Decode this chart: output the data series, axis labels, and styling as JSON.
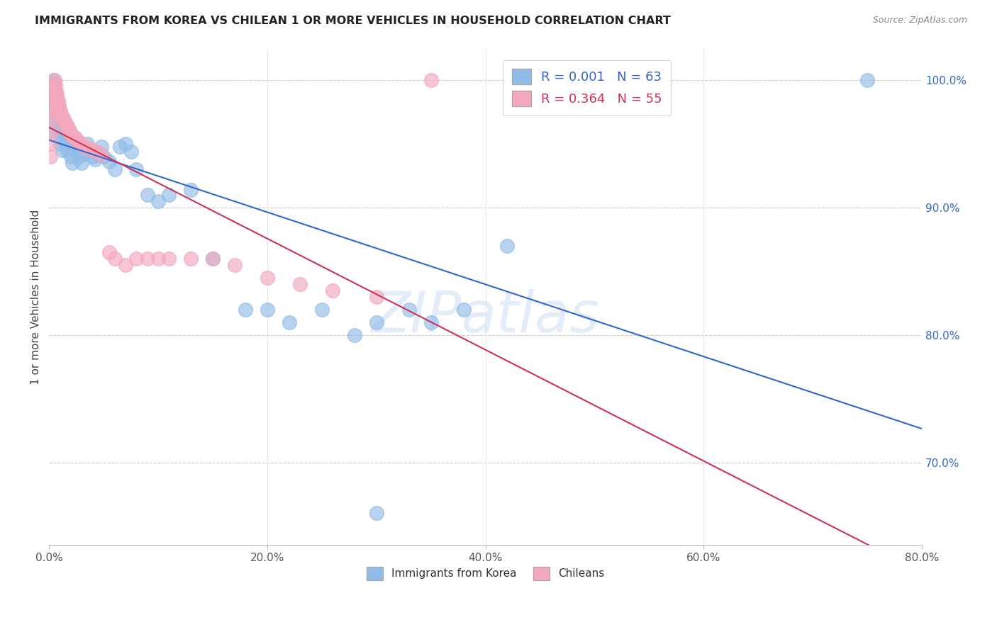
{
  "title": "IMMIGRANTS FROM KOREA VS CHILEAN 1 OR MORE VEHICLES IN HOUSEHOLD CORRELATION CHART",
  "source": "Source: ZipAtlas.com",
  "ylabel": "1 or more Vehicles in Household",
  "ylabel_right_labels": [
    "100.0%",
    "90.0%",
    "80.0%",
    "70.0%"
  ],
  "ylabel_right_values": [
    1.0,
    0.9,
    0.8,
    0.7
  ],
  "xtick_labels": [
    "0.0%",
    "20.0%",
    "40.0%",
    "60.0%",
    "80.0%"
  ],
  "xtick_values": [
    0.0,
    0.2,
    0.4,
    0.6,
    0.8
  ],
  "legend_korea": "R = 0.001   N = 63",
  "legend_chilean": "R = 0.364   N = 55",
  "legend_bottom_korea": "Immigrants from Korea",
  "legend_bottom_chilean": "Chileans",
  "blue_color": "#92bce8",
  "pink_color": "#f4a8bc",
  "blue_line_color": "#3366cc",
  "pink_line_color": "#cc3355",
  "xmin": 0.0,
  "xmax": 0.8,
  "ymin": 0.635,
  "ymax": 1.025,
  "korea_x": [
    0.001,
    0.001,
    0.002,
    0.002,
    0.003,
    0.003,
    0.004,
    0.004,
    0.005,
    0.005,
    0.006,
    0.006,
    0.007,
    0.007,
    0.008,
    0.008,
    0.009,
    0.01,
    0.01,
    0.012,
    0.012,
    0.013,
    0.015,
    0.015,
    0.017,
    0.018,
    0.02,
    0.021,
    0.023,
    0.025,
    0.027,
    0.03,
    0.032,
    0.035,
    0.038,
    0.04,
    0.042,
    0.045,
    0.048,
    0.05,
    0.055,
    0.06,
    0.065,
    0.07,
    0.075,
    0.08,
    0.09,
    0.1,
    0.11,
    0.13,
    0.15,
    0.18,
    0.2,
    0.22,
    0.25,
    0.28,
    0.3,
    0.33,
    0.35,
    0.38,
    0.42,
    0.75,
    0.3
  ],
  "korea_y": [
    0.96,
    0.97,
    0.975,
    0.98,
    0.985,
    0.99,
    0.995,
    1.0,
    0.998,
    0.995,
    0.99,
    0.985,
    0.98,
    0.975,
    0.97,
    0.965,
    0.96,
    0.955,
    0.95,
    0.945,
    0.965,
    0.97,
    0.96,
    0.95,
    0.945,
    0.955,
    0.94,
    0.935,
    0.945,
    0.95,
    0.94,
    0.935,
    0.942,
    0.95,
    0.945,
    0.94,
    0.938,
    0.942,
    0.948,
    0.94,
    0.936,
    0.93,
    0.948,
    0.95,
    0.944,
    0.93,
    0.91,
    0.905,
    0.91,
    0.914,
    0.86,
    0.82,
    0.82,
    0.81,
    0.82,
    0.8,
    0.81,
    0.82,
    0.81,
    0.82,
    0.87,
    1.0,
    0.66
  ],
  "chilean_x": [
    0.001,
    0.001,
    0.002,
    0.002,
    0.003,
    0.003,
    0.004,
    0.004,
    0.005,
    0.005,
    0.006,
    0.006,
    0.007,
    0.007,
    0.008,
    0.008,
    0.009,
    0.009,
    0.01,
    0.01,
    0.011,
    0.012,
    0.013,
    0.014,
    0.015,
    0.016,
    0.017,
    0.018,
    0.019,
    0.02,
    0.022,
    0.024,
    0.026,
    0.028,
    0.03,
    0.033,
    0.036,
    0.04,
    0.044,
    0.048,
    0.055,
    0.06,
    0.07,
    0.08,
    0.09,
    0.1,
    0.11,
    0.13,
    0.15,
    0.17,
    0.2,
    0.23,
    0.26,
    0.3,
    0.35
  ],
  "chilean_y": [
    0.94,
    0.95,
    0.96,
    0.97,
    0.975,
    0.98,
    0.985,
    0.99,
    0.995,
    1.0,
    0.997,
    0.993,
    0.99,
    0.987,
    0.984,
    0.982,
    0.98,
    0.978,
    0.976,
    0.975,
    0.973,
    0.971,
    0.97,
    0.968,
    0.966,
    0.965,
    0.963,
    0.962,
    0.96,
    0.958,
    0.956,
    0.955,
    0.953,
    0.951,
    0.95,
    0.948,
    0.947,
    0.945,
    0.944,
    0.942,
    0.865,
    0.86,
    0.855,
    0.86,
    0.86,
    0.86,
    0.86,
    0.86,
    0.86,
    0.855,
    0.845,
    0.84,
    0.835,
    0.83,
    1.0
  ]
}
